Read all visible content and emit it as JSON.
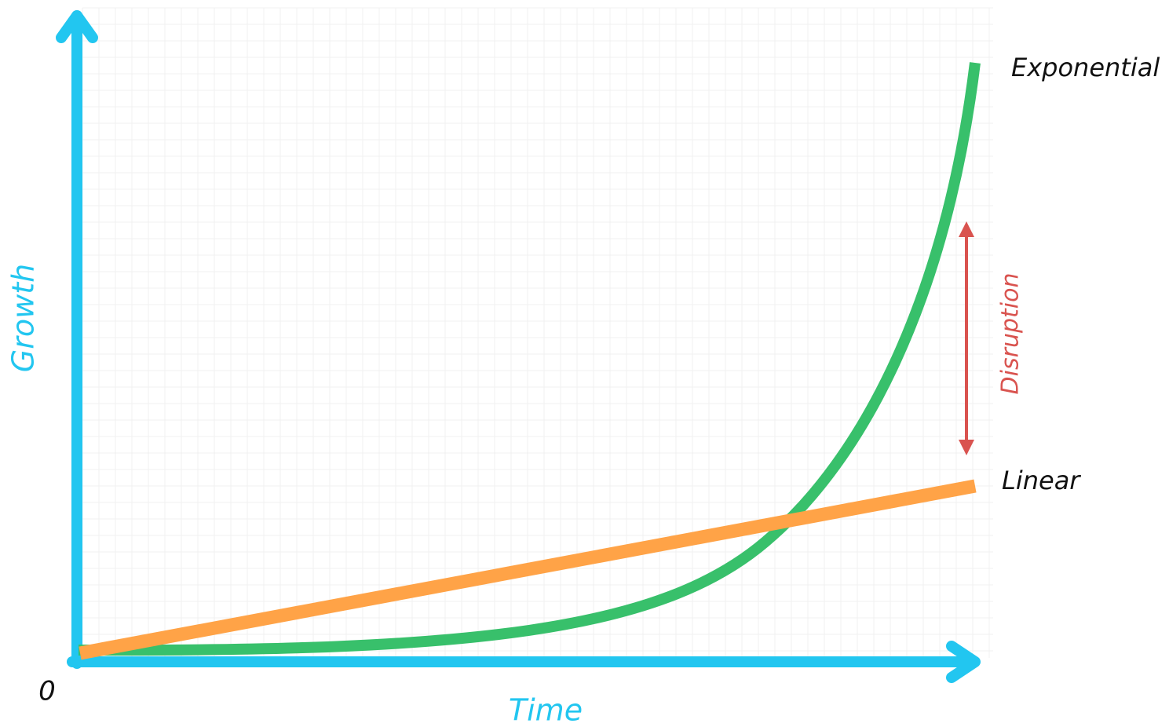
{
  "axes": {
    "y_label": "Growth",
    "x_label": "Time",
    "origin": "0"
  },
  "curves": {
    "exponential": "Exponential",
    "linear": "Linear"
  },
  "annotation": "Disruption"
}
